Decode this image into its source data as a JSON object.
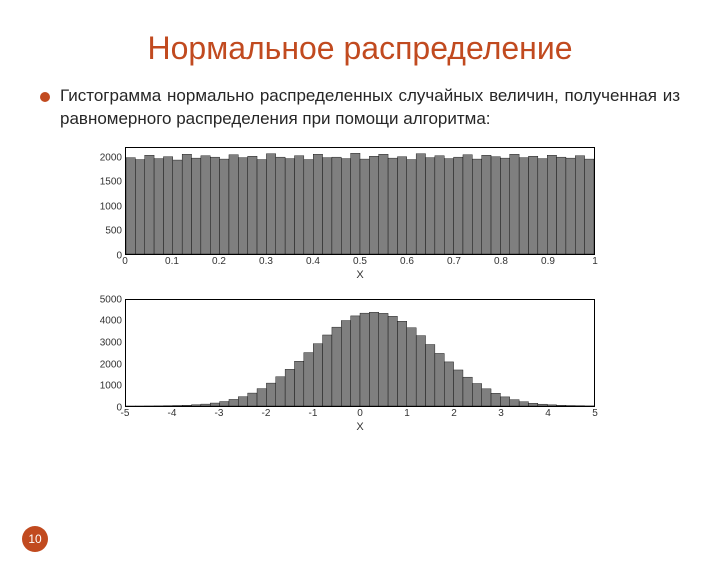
{
  "slide": {
    "title": "Нормальное распределение",
    "title_color": "#c14a1f",
    "bullet_color": "#c14a1f",
    "bullet_text": "Гистограмма нормально распределенных случайных величин, полученная из равномерного распределения при помощи алгоритма:",
    "page_number": "10",
    "page_badge_bg": "#c14a1f"
  },
  "chart_uniform": {
    "type": "histogram",
    "x_label": "X",
    "xlim": [
      0,
      1
    ],
    "ylim": [
      0,
      2200
    ],
    "x_ticks": [
      "0",
      "0.1",
      "0.2",
      "0.3",
      "0.4",
      "0.5",
      "0.6",
      "0.7",
      "0.8",
      "0.9",
      "1"
    ],
    "y_ticks": [
      "0",
      "500",
      "1000",
      "1500",
      "2000"
    ],
    "values": [
      2000,
      1960,
      2050,
      1980,
      2020,
      1950,
      2070,
      1990,
      2040,
      2010,
      1970,
      2060,
      2000,
      2030,
      1960,
      2080,
      2010,
      1980,
      2040,
      1960,
      2070,
      2000,
      2010,
      1980,
      2090,
      1970,
      2030,
      2070,
      1990,
      2020,
      1960,
      2080,
      2000,
      2040,
      1980,
      2010,
      2060,
      1970,
      2050,
      2020,
      1990,
      2070,
      2000,
      2030,
      1980,
      2050,
      2010,
      1990,
      2040,
      1970
    ],
    "bar_color": "#7f7f7f",
    "bar_border": "#000000",
    "background_color": "#ffffff"
  },
  "chart_normal": {
    "type": "histogram",
    "x_label": "X",
    "xlim": [
      -5,
      5
    ],
    "ylim": [
      0,
      5000
    ],
    "x_ticks": [
      "-5",
      "-4",
      "-3",
      "-2",
      "-1",
      "0",
      "1",
      "2",
      "3",
      "4",
      "5"
    ],
    "y_ticks": [
      "0",
      "1000",
      "2000",
      "3000",
      "4000",
      "5000"
    ],
    "values": [
      2,
      3,
      5,
      8,
      14,
      22,
      36,
      58,
      90,
      140,
      210,
      310,
      440,
      610,
      820,
      1080,
      1380,
      1730,
      2110,
      2520,
      2940,
      3350,
      3720,
      4030,
      4250,
      4380,
      4420,
      4370,
      4230,
      4000,
      3690,
      3320,
      2900,
      2480,
      2080,
      1700,
      1360,
      1060,
      810,
      600,
      430,
      300,
      200,
      130,
      86,
      54,
      34,
      20,
      12,
      7
    ],
    "bar_color": "#7f7f7f",
    "bar_border": "#000000",
    "background_color": "#ffffff"
  }
}
